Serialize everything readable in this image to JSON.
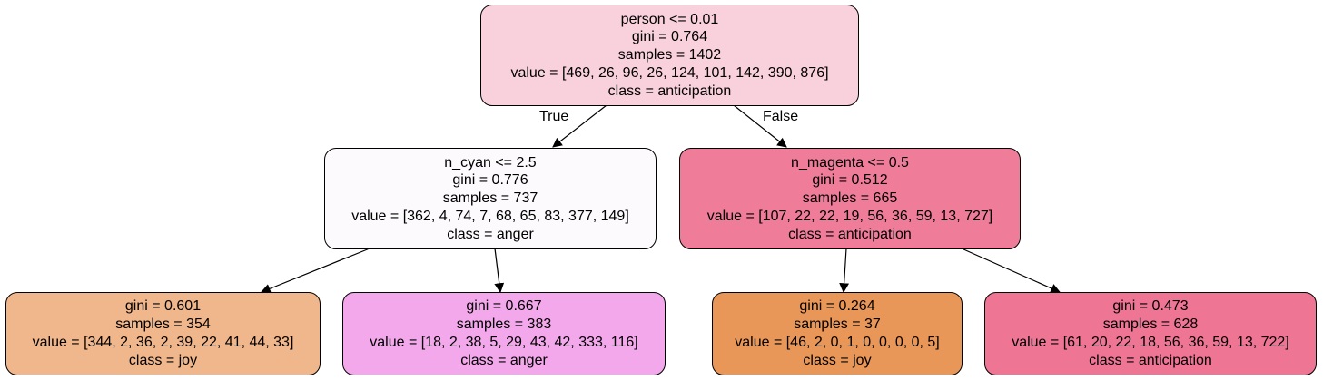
{
  "nodes": {
    "root": {
      "fill": "#f9d1dc",
      "lines": [
        "person <= 0.01",
        "gini = 0.764",
        "samples = 1402",
        "value = [469, 26, 96, 26, 124, 101, 142, 390, 876]",
        "class = anticipation"
      ]
    },
    "left": {
      "fill": "#fdfafd",
      "lines": [
        "n_cyan <= 2.5",
        "gini = 0.776",
        "samples = 737",
        "value = [362, 4, 74, 7, 68, 65, 83, 377, 149]",
        "class = anger"
      ]
    },
    "right": {
      "fill": "#ef7d99",
      "lines": [
        "n_magenta <= 0.5",
        "gini = 0.512",
        "samples = 665",
        "value = [107, 22, 22, 19, 56, 36, 59, 13, 727]",
        "class = anticipation"
      ]
    },
    "ll": {
      "fill": "#f0b68c",
      "lines": [
        "gini = 0.601",
        "samples = 354",
        "value = [344, 2, 36, 2, 39, 22, 41, 44, 33]",
        "class = joy"
      ]
    },
    "lr": {
      "fill": "#f2a8eb",
      "lines": [
        "gini = 0.667",
        "samples = 383",
        "value = [18, 2, 38, 5, 29, 43, 42, 333, 116]",
        "class = anger"
      ]
    },
    "rl": {
      "fill": "#e99659",
      "lines": [
        "gini = 0.264",
        "samples = 37",
        "value = [46, 2, 0, 1, 0, 0, 0, 0, 5]",
        "class = joy"
      ]
    },
    "rr": {
      "fill": "#ef7594",
      "lines": [
        "gini = 0.473",
        "samples = 628",
        "value = [61, 20, 22, 18, 56, 36, 59, 13, 722]",
        "class = anticipation"
      ]
    }
  },
  "edges": {
    "true_label": "True",
    "false_label": "False"
  }
}
